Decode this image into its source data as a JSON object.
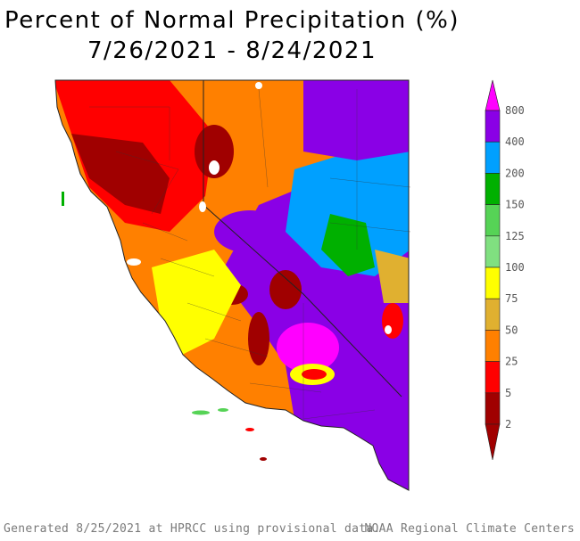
{
  "title": {
    "line1": "Percent of Normal Precipitation (%)",
    "line2": "7/26/2021 - 8/24/2021"
  },
  "legend": {
    "labels": [
      "800",
      "400",
      "200",
      "150",
      "125",
      "100",
      "75",
      "50",
      "25",
      "5",
      "2"
    ],
    "colors": {
      "800": "#ff00ff",
      "400": "#8a00e6",
      "200": "#00a0ff",
      "150": "#00b000",
      "125": "#56d356",
      "100": "#80e080",
      "75": "#ffff00",
      "50": "#e0b030",
      "25": "#ff8000",
      "5": "#ff0000",
      "2": "#a00000"
    }
  },
  "footer": {
    "left": "Generated 8/25/2021 at HPRCC using provisional data.",
    "right": "NOAA Regional Climate Centers"
  }
}
